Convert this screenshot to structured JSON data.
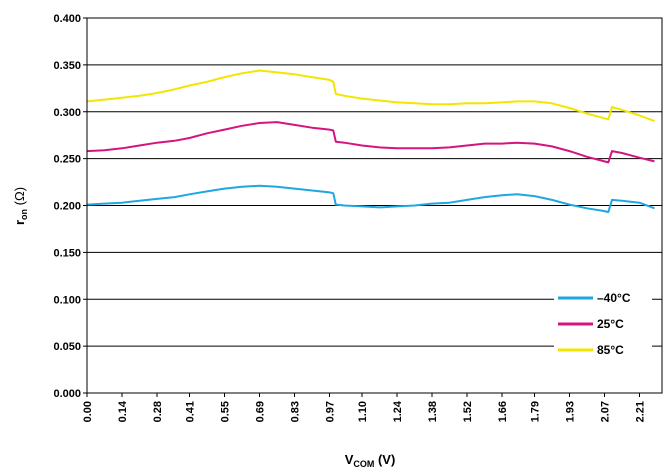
{
  "chart_data": {
    "type": "line",
    "xlabel": {
      "main": "V",
      "sub": "COM",
      "suffix": " (V)"
    },
    "ylabel": {
      "main": "r",
      "sub": "on",
      "suffix": " (Ω)"
    },
    "ylim": [
      0,
      0.4
    ],
    "xlim": [
      0,
      2.3
    ],
    "y_ticks": [
      "0.000",
      "0.050",
      "0.100",
      "0.150",
      "0.200",
      "0.250",
      "0.300",
      "0.350",
      "0.400"
    ],
    "x_ticks": [
      "0.00",
      "0.14",
      "0.28",
      "0.41",
      "0.55",
      "0.69",
      "0.83",
      "0.97",
      "1.10",
      "1.24",
      "1.38",
      "1.52",
      "1.66",
      "1.79",
      "1.93",
      "2.07",
      "2.21"
    ],
    "grid": "horizontal",
    "legend_position": "bottom-right",
    "series": [
      {
        "name": "–40°C",
        "color": "#1fa7e0",
        "x": [
          0.0,
          0.07,
          0.14,
          0.21,
          0.28,
          0.35,
          0.41,
          0.48,
          0.55,
          0.62,
          0.69,
          0.76,
          0.83,
          0.9,
          0.97,
          0.985,
          0.995,
          1.03,
          1.1,
          1.17,
          1.24,
          1.31,
          1.38,
          1.45,
          1.52,
          1.59,
          1.66,
          1.72,
          1.79,
          1.86,
          1.93,
          2.0,
          2.07,
          2.085,
          2.1,
          2.14,
          2.21,
          2.27
        ],
        "y": [
          0.201,
          0.202,
          0.203,
          0.205,
          0.207,
          0.209,
          0.212,
          0.215,
          0.218,
          0.22,
          0.221,
          0.22,
          0.218,
          0.216,
          0.214,
          0.213,
          0.201,
          0.2,
          0.199,
          0.198,
          0.199,
          0.2,
          0.202,
          0.203,
          0.206,
          0.209,
          0.211,
          0.212,
          0.21,
          0.206,
          0.201,
          0.197,
          0.194,
          0.193,
          0.206,
          0.205,
          0.203,
          0.197
        ]
      },
      {
        "name": "25°C",
        "color": "#d4157f",
        "x": [
          0.0,
          0.07,
          0.14,
          0.21,
          0.28,
          0.35,
          0.41,
          0.48,
          0.55,
          0.62,
          0.69,
          0.76,
          0.83,
          0.9,
          0.97,
          0.985,
          0.995,
          1.03,
          1.1,
          1.17,
          1.24,
          1.31,
          1.38,
          1.45,
          1.52,
          1.59,
          1.66,
          1.72,
          1.79,
          1.86,
          1.93,
          2.0,
          2.07,
          2.085,
          2.1,
          2.14,
          2.21,
          2.27
        ],
        "y": [
          0.258,
          0.259,
          0.261,
          0.264,
          0.267,
          0.269,
          0.272,
          0.277,
          0.281,
          0.285,
          0.288,
          0.289,
          0.286,
          0.283,
          0.281,
          0.28,
          0.268,
          0.267,
          0.264,
          0.262,
          0.261,
          0.261,
          0.261,
          0.262,
          0.264,
          0.266,
          0.266,
          0.267,
          0.266,
          0.263,
          0.258,
          0.252,
          0.247,
          0.246,
          0.258,
          0.256,
          0.251,
          0.247
        ]
      },
      {
        "name": "85°C",
        "color": "#f2e600",
        "x": [
          0.0,
          0.07,
          0.14,
          0.21,
          0.28,
          0.35,
          0.41,
          0.48,
          0.55,
          0.62,
          0.69,
          0.76,
          0.83,
          0.9,
          0.97,
          0.985,
          0.995,
          1.03,
          1.1,
          1.17,
          1.24,
          1.31,
          1.38,
          1.45,
          1.52,
          1.59,
          1.66,
          1.72,
          1.79,
          1.86,
          1.93,
          2.0,
          2.07,
          2.085,
          2.1,
          2.14,
          2.21,
          2.27
        ],
        "y": [
          0.311,
          0.313,
          0.315,
          0.317,
          0.32,
          0.324,
          0.328,
          0.332,
          0.337,
          0.341,
          0.344,
          0.342,
          0.34,
          0.337,
          0.334,
          0.332,
          0.319,
          0.317,
          0.314,
          0.312,
          0.31,
          0.309,
          0.308,
          0.308,
          0.309,
          0.309,
          0.31,
          0.311,
          0.311,
          0.309,
          0.304,
          0.298,
          0.293,
          0.292,
          0.305,
          0.302,
          0.296,
          0.29
        ]
      }
    ]
  }
}
